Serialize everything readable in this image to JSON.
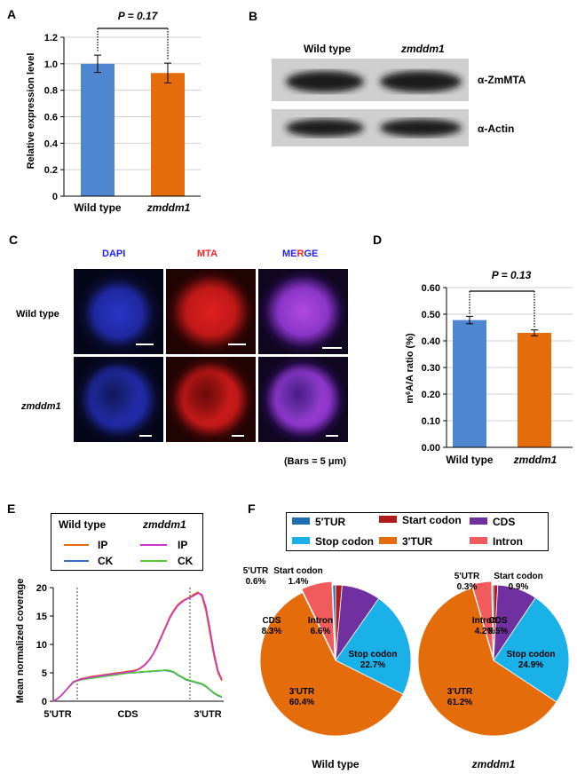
{
  "panels": {
    "A": "A",
    "B": "B",
    "C": "C",
    "D": "D",
    "E": "E",
    "F": "F"
  },
  "panelA": {
    "chart_data": {
      "type": "bar",
      "categories": [
        "Wild type",
        "zmddm1"
      ],
      "values": [
        1.0,
        0.93
      ],
      "errors": [
        0.065,
        0.075
      ],
      "ylabel": "Relative expression level",
      "ylim": [
        0,
        1.2
      ],
      "yticks": [
        "0",
        "0.2",
        "0.4",
        "0.6",
        "0.8",
        "1.0",
        "1.2"
      ],
      "colors": [
        "#4f86d0",
        "#e46c0a"
      ],
      "significance": "P = 0.17",
      "grid": true
    }
  },
  "panelB": {
    "col1": "Wild type",
    "col2": "zmddm1",
    "row1": "α-ZmMTA",
    "row2": "α-Actin"
  },
  "panelC": {
    "col_dapi": "DAPI",
    "col_mta": "MTA",
    "col_merge_1": "ME",
    "col_merge_2": "R",
    "col_merge_3": "GE",
    "row1": "Wild type",
    "row2": "zmddm1",
    "bars_note": "(Bars = 5 μm)"
  },
  "panelD": {
    "chart_data": {
      "type": "bar",
      "categories": [
        "Wild type",
        "zmddm1"
      ],
      "values": [
        0.478,
        0.43
      ],
      "errors": [
        0.014,
        0.011
      ],
      "ylabel_pre": "m",
      "ylabel_sup": "6",
      "ylabel_post": "A/A ratio (%)",
      "ylim": [
        0,
        0.6
      ],
      "yticks": [
        "0.00",
        "0.10",
        "0.20",
        "0.30",
        "0.40",
        "0.50",
        "0.60"
      ],
      "colors": [
        "#4f86d0",
        "#e46c0a"
      ],
      "significance": "P = 0.13",
      "grid": true
    }
  },
  "panelE": {
    "chart_data": {
      "type": "line",
      "ylabel": "Mean normalized coverage",
      "xlabels": [
        "5'UTR",
        "CDS",
        "3'UTR"
      ],
      "ylim": [
        0,
        20
      ],
      "yticks": [
        "0",
        "5",
        "10",
        "15",
        "20"
      ],
      "legend": {
        "group1": "Wild type",
        "group2": "zmddm1",
        "ip": "IP",
        "ck": "CK"
      },
      "series": [
        {
          "name": "IP",
          "group": "Wild type",
          "color": "#e46c0a",
          "y": [
            0.0,
            0.4,
            1.0,
            1.8,
            2.6,
            3.4,
            3.7,
            4.0,
            4.1,
            4.3,
            4.4,
            4.5,
            4.6,
            4.7,
            4.8,
            4.9,
            5.0,
            5.1,
            5.2,
            5.3,
            5.4,
            5.6,
            6.0,
            6.6,
            7.4,
            8.5,
            10.0,
            11.6,
            13.2,
            14.8,
            16.0,
            17.0,
            17.6,
            18.0,
            18.3,
            18.8,
            19.2,
            18.5,
            16.0,
            12.0,
            8.0,
            5.0,
            3.6
          ]
        },
        {
          "name": "IP",
          "group": "zmddm1",
          "color": "#cc33cc",
          "y": [
            0.0,
            0.4,
            1.0,
            1.8,
            2.6,
            3.4,
            3.7,
            3.9,
            4.0,
            4.2,
            4.3,
            4.4,
            4.5,
            4.6,
            4.7,
            4.8,
            4.9,
            5.0,
            5.1,
            5.2,
            5.3,
            5.5,
            5.9,
            6.5,
            7.3,
            8.4,
            9.8,
            11.4,
            13.0,
            14.6,
            15.8,
            16.8,
            17.4,
            17.9,
            18.2,
            18.6,
            19.0,
            18.8,
            16.6,
            12.8,
            8.6,
            5.4,
            3.8
          ]
        },
        {
          "name": "CK",
          "group": "Wild type",
          "color": "#3a6fc0",
          "y": [
            0.0,
            0.4,
            1.0,
            1.8,
            2.6,
            3.3,
            3.6,
            3.8,
            3.9,
            4.0,
            4.1,
            4.2,
            4.3,
            4.4,
            4.5,
            4.6,
            4.7,
            4.8,
            4.9,
            5.0,
            5.0,
            5.1,
            5.1,
            5.2,
            5.2,
            5.3,
            5.3,
            5.4,
            5.4,
            5.3,
            5.1,
            4.6,
            4.2,
            3.8,
            3.6,
            3.4,
            3.2,
            3.0,
            2.6,
            2.0,
            1.4,
            1.0,
            0.7
          ]
        },
        {
          "name": "CK",
          "group": "zmddm1",
          "color": "#55cc33",
          "y": [
            0.0,
            0.4,
            1.0,
            1.8,
            2.6,
            3.3,
            3.6,
            3.8,
            3.9,
            4.0,
            4.1,
            4.2,
            4.3,
            4.4,
            4.5,
            4.6,
            4.7,
            4.8,
            4.9,
            5.0,
            5.1,
            5.1,
            5.2,
            5.2,
            5.3,
            5.3,
            5.4,
            5.4,
            5.5,
            5.4,
            5.2,
            4.7,
            4.3,
            3.9,
            3.7,
            3.5,
            3.3,
            3.1,
            2.7,
            2.1,
            1.5,
            1.1,
            0.8
          ]
        }
      ]
    }
  },
  "panelF": {
    "legend": [
      {
        "label": "5'TUR",
        "color": "#1f6fb5"
      },
      {
        "label": "Start codon",
        "color": "#b01c1c"
      },
      {
        "label": "CDS",
        "color": "#7030a0"
      },
      {
        "label": "Stop codon",
        "color": "#1ab0e8"
      },
      {
        "label": "3'TUR",
        "color": "#e46c0a"
      },
      {
        "label": "Intron",
        "color": "#f25b5b"
      }
    ],
    "chart_data": [
      {
        "type": "pie",
        "name": "Wild type",
        "slices": [
          {
            "label": "5'UTR",
            "value": 0.6,
            "text": "0.6%",
            "color": "#1f6fb5"
          },
          {
            "label": "Start codon",
            "value": 1.4,
            "text": "1.4%",
            "color": "#b01c1c"
          },
          {
            "label": "CDS",
            "value": 8.3,
            "text": "8.3%",
            "color": "#7030a0"
          },
          {
            "label": "Stop codon",
            "value": 22.7,
            "text": "22.7%",
            "color": "#1ab0e8"
          },
          {
            "label": "3'UTR",
            "value": 60.4,
            "text": "60.4%",
            "color": "#e46c0a"
          },
          {
            "label": "Intron",
            "value": 6.6,
            "text": "6.6%",
            "color": "#f25b5b"
          }
        ]
      },
      {
        "type": "pie",
        "name": "zmddm1",
        "slices": [
          {
            "label": "5'UTR",
            "value": 0.3,
            "text": "0.3%",
            "color": "#1f6fb5"
          },
          {
            "label": "Start codon",
            "value": 0.9,
            "text": "0.9%",
            "color": "#b01c1c"
          },
          {
            "label": "CDS",
            "value": 8.5,
            "text": "8.5%",
            "color": "#7030a0"
          },
          {
            "label": "Stop codon",
            "value": 24.9,
            "text": "24.9%",
            "color": "#1ab0e8"
          },
          {
            "label": "3'UTR",
            "value": 61.2,
            "text": "61.2%",
            "color": "#e46c0a"
          },
          {
            "label": "Intron",
            "value": 4.2,
            "text": "4.2%",
            "color": "#f25b5b"
          }
        ]
      }
    ]
  }
}
